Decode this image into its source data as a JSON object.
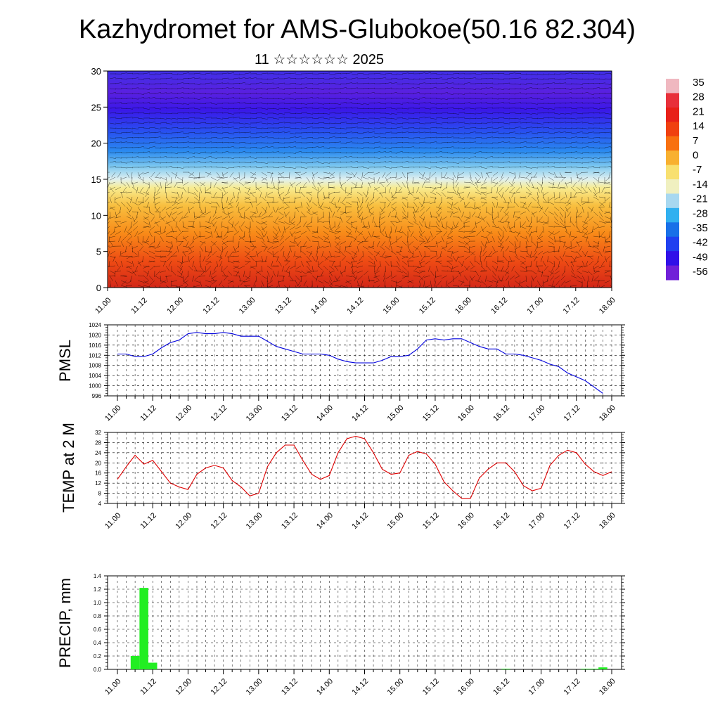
{
  "title": "Kazhydromet for AMS-Glubokoe(50.16 82.304)",
  "subtitle": "11 ☆☆☆☆☆☆ 2025",
  "x_tick_labels": [
    "11.00",
    "11.12",
    "12.00",
    "12.12",
    "13.00",
    "13.12",
    "14.00",
    "14.12",
    "15.00",
    "15.12",
    "16.00",
    "16.12",
    "17.00",
    "17.12",
    "18.00"
  ],
  "colorbar": {
    "labels": [
      "35",
      "28",
      "21",
      "14",
      "7",
      "0",
      "-7",
      "-14",
      "-21",
      "-28",
      "-35",
      "-42",
      "-49",
      "-56"
    ],
    "colors": [
      "#f0b8c0",
      "#e8303a",
      "#e82018",
      "#f04010",
      "#f87010",
      "#f8b030",
      "#f8e070",
      "#f0f0c0",
      "#a8d8f0",
      "#30b0f0",
      "#1870e8",
      "#2040f0",
      "#3010e8",
      "#7020d8"
    ]
  },
  "chart_data": [
    {
      "type": "heatmap",
      "title": "",
      "xlabel": "",
      "ylabel": "",
      "description_values": "temperature cross-section with wind barbs",
      "ylim": [
        0,
        30
      ],
      "y_ticks": [
        0,
        5,
        10,
        15,
        20,
        25,
        30
      ],
      "x_ticks": [
        "11.00",
        "11.12",
        "12.00",
        "12.12",
        "13.00",
        "13.12",
        "14.00",
        "14.12",
        "15.00",
        "15.12",
        "16.00",
        "16.12",
        "17.00",
        "17.12",
        "18.00"
      ],
      "colorbar_range": [
        -56,
        35
      ]
    },
    {
      "type": "line",
      "ylabel": "PMSL",
      "ylim": [
        996,
        1024
      ],
      "y_ticks": [
        "1024",
        "1020",
        "1016",
        "1012",
        "1008",
        "1004",
        "1000",
        "996"
      ],
      "x": [
        0,
        3,
        6,
        9,
        12,
        15,
        18,
        21,
        24,
        27,
        30,
        33,
        36,
        39,
        42,
        45,
        48,
        51,
        54,
        57,
        60,
        63,
        66,
        69,
        72,
        75,
        78,
        81,
        84,
        87,
        90,
        93,
        96,
        99,
        102,
        105,
        108,
        111,
        114,
        117,
        120,
        123,
        126,
        129,
        132,
        135,
        138,
        141,
        144,
        147,
        150,
        153,
        156,
        159,
        162,
        165,
        168
      ],
      "series": [
        {
          "name": "",
          "color": "#0000dd",
          "values": [
            1012.5,
            1012.5,
            1011.5,
            1011.5,
            1012.5,
            1015,
            1017,
            1018,
            1020.5,
            1021,
            1020.5,
            1020.5,
            1021,
            1020.5,
            1019.5,
            1019.5,
            1019.5,
            1017.5,
            1015.5,
            1014.5,
            1013.5,
            1012.5,
            1012.5,
            1012.5,
            1012,
            1010.5,
            1009.5,
            1009,
            1009,
            1009,
            1010,
            1011.5,
            1011.5,
            1012,
            1014.5,
            1018,
            1018.5,
            1018,
            1018.5,
            1018.5,
            1017,
            1015.5,
            1014.5,
            1014.5,
            1012.5,
            1012.5,
            1012,
            1011,
            1010,
            1008.5,
            1007.5,
            1005,
            1003.5,
            1002,
            999.5,
            997,
            null
          ]
        }
      ]
    },
    {
      "type": "line",
      "ylabel": "TEMP at 2 M",
      "ylim": [
        4,
        32
      ],
      "y_ticks": [
        "32",
        "28",
        "24",
        "20",
        "16",
        "12",
        "8",
        "4"
      ],
      "x": [
        0,
        3,
        6,
        9,
        12,
        15,
        18,
        21,
        24,
        27,
        30,
        33,
        36,
        39,
        42,
        45,
        48,
        51,
        54,
        57,
        60,
        63,
        66,
        69,
        72,
        75,
        78,
        81,
        84,
        87,
        90,
        93,
        96,
        99,
        102,
        105,
        108,
        111,
        114,
        117,
        120,
        123,
        126,
        129,
        132,
        135,
        138,
        141,
        144,
        147,
        150,
        153,
        156,
        159,
        162,
        165,
        168
      ],
      "series": [
        {
          "name": "",
          "color": "#dd0000",
          "values": [
            13.5,
            18.5,
            23,
            19.5,
            21,
            16.5,
            12,
            10.5,
            9.5,
            15.5,
            18,
            19,
            18,
            13,
            10.5,
            7,
            8,
            18.5,
            24,
            27,
            27,
            21,
            15.5,
            13.5,
            15,
            24,
            29.5,
            30.5,
            29.5,
            24,
            17.5,
            15.5,
            16,
            23,
            24.5,
            23.5,
            19.5,
            12.5,
            9,
            6,
            6,
            14,
            17.5,
            20,
            20,
            16.5,
            11,
            9,
            10,
            19,
            23,
            25,
            24,
            19.5,
            16.5,
            15,
            16.5
          ]
        }
      ]
    },
    {
      "type": "bar",
      "ylabel": "PRECIP, mm",
      "ylim": [
        0,
        1.4
      ],
      "y_ticks": [
        "1.4",
        "1.2",
        "1.0",
        "0.8",
        "0.6",
        "0.4",
        "0.2",
        "0.0"
      ],
      "bar_width_hours": 3,
      "bars": [
        {
          "x": 6,
          "value": 0.2
        },
        {
          "x": 9,
          "value": 1.22
        },
        {
          "x": 12,
          "value": 0.1
        },
        {
          "x": 132,
          "value": 0.01
        },
        {
          "x": 159,
          "value": 0.01
        },
        {
          "x": 162,
          "value": 0.01
        },
        {
          "x": 165,
          "value": 0.03
        }
      ]
    }
  ]
}
